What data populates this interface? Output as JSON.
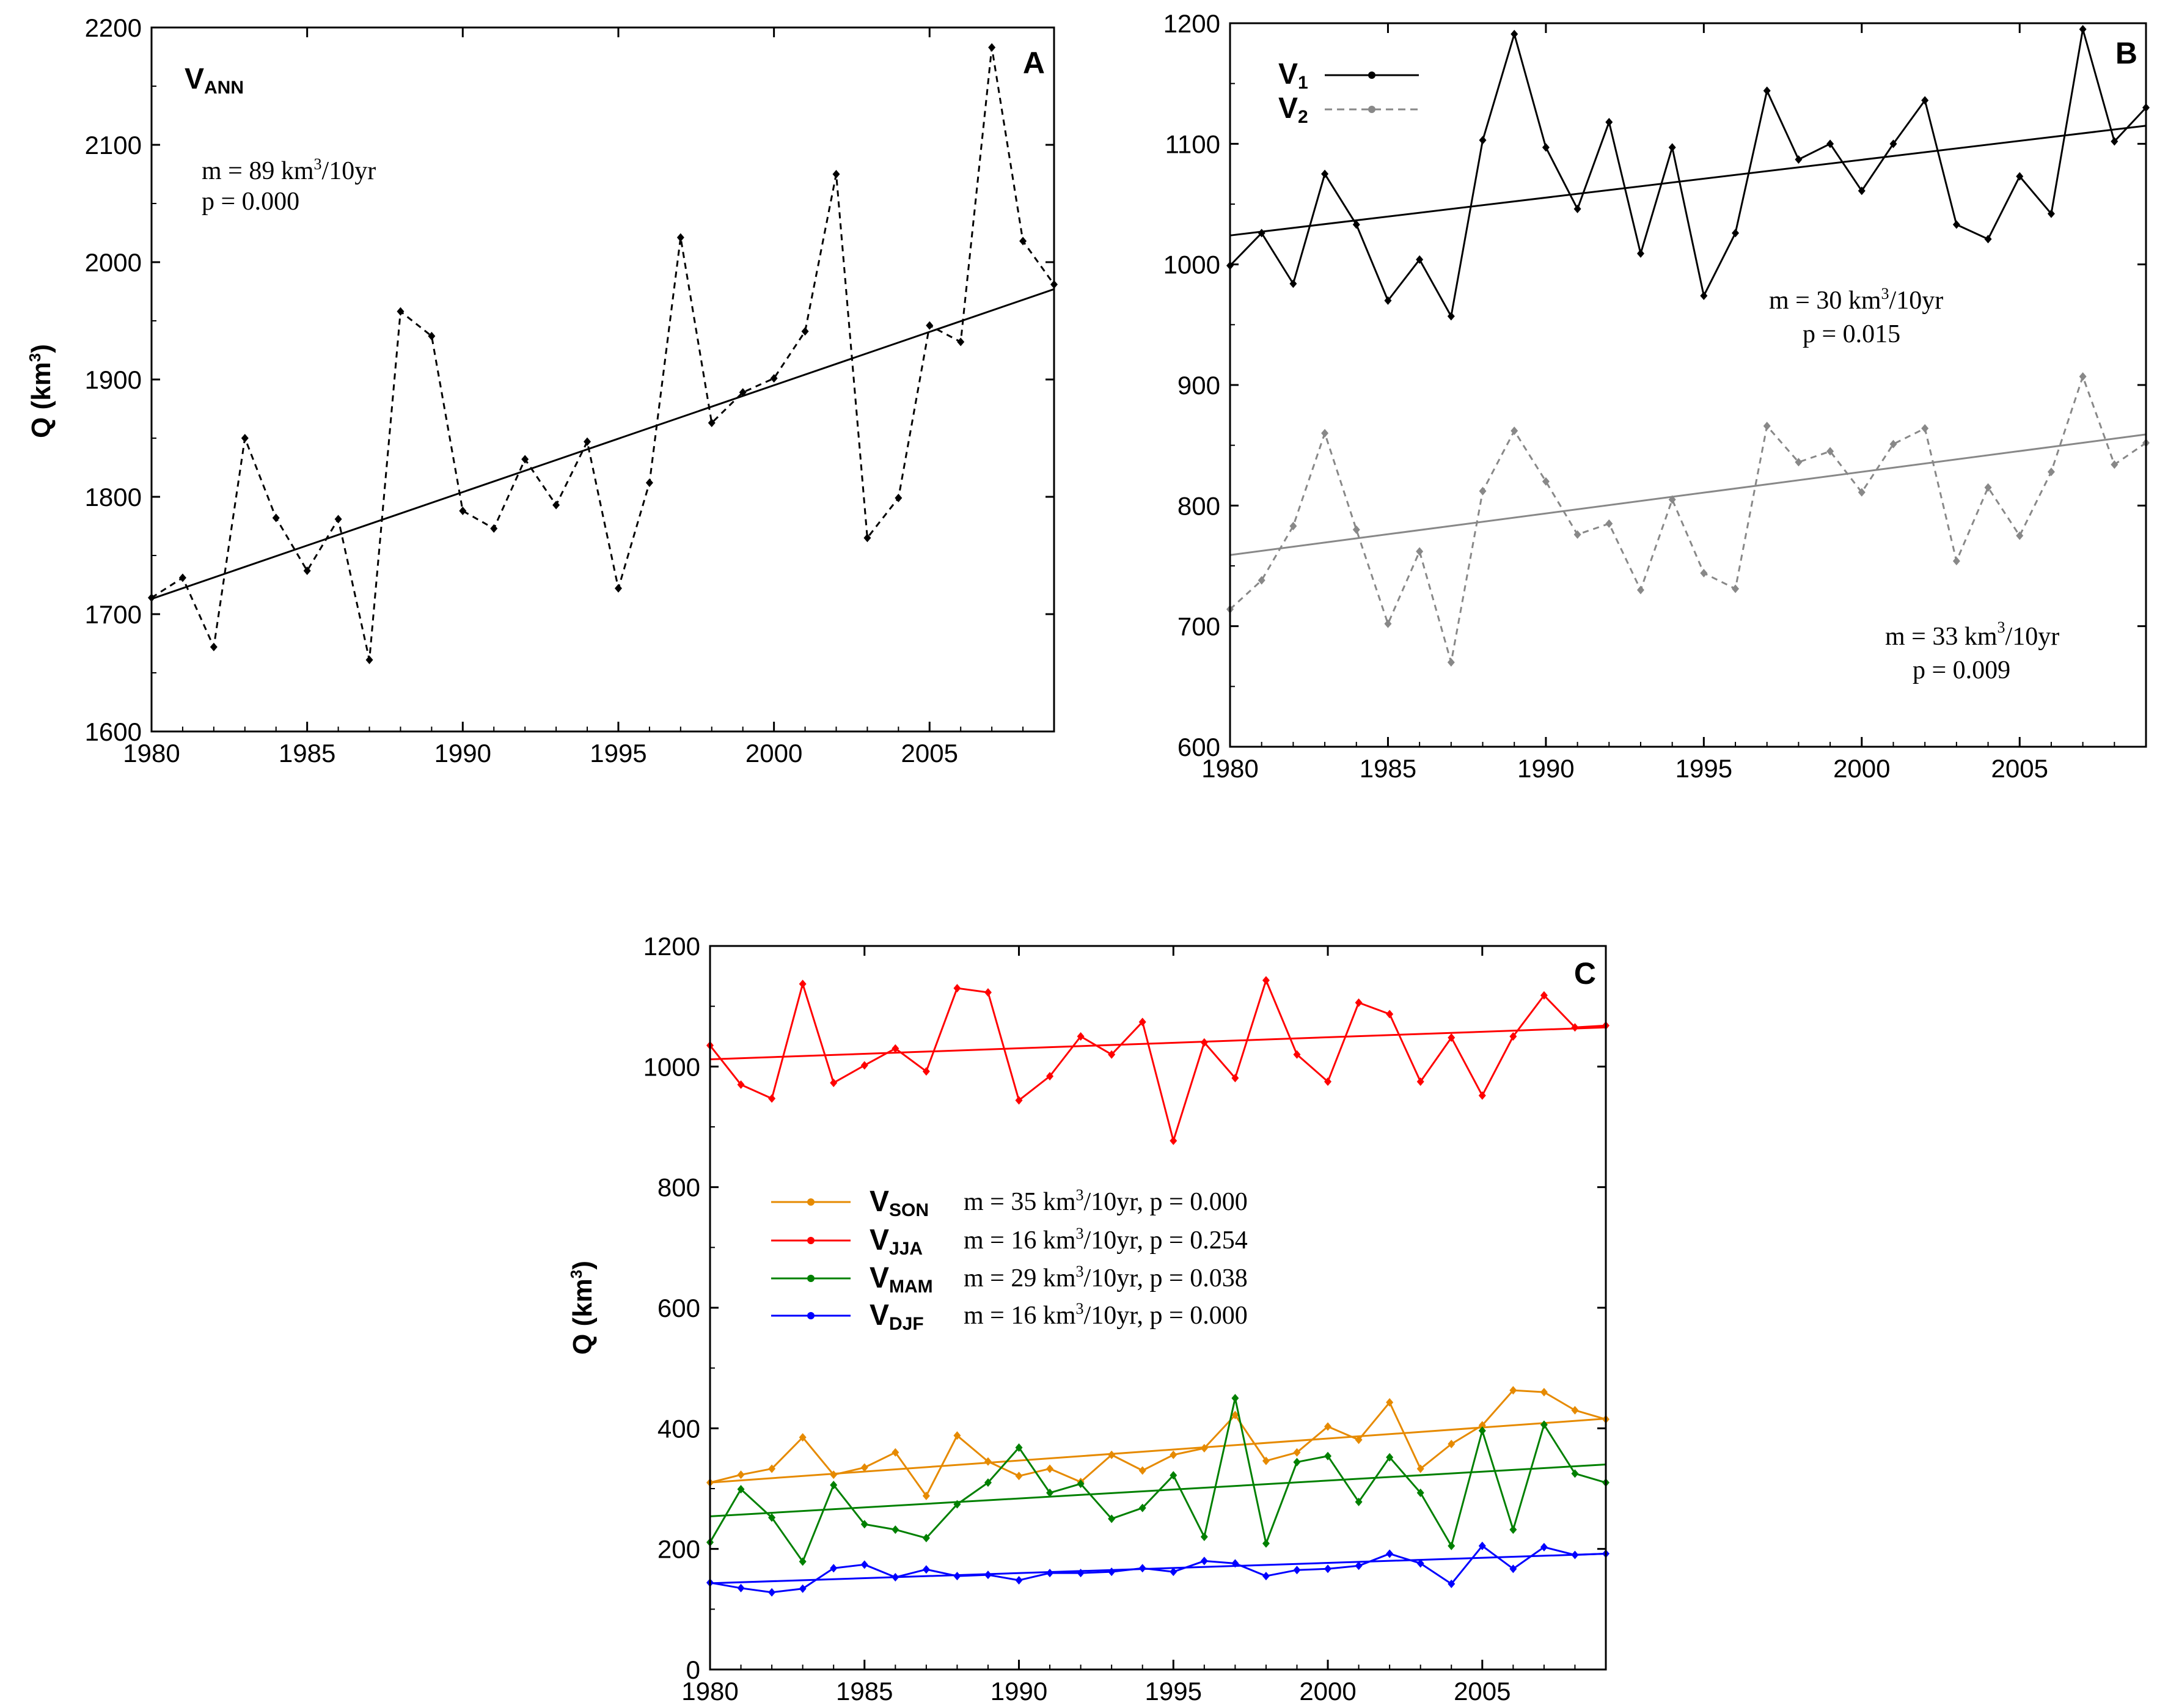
{
  "chart_data": [
    {
      "id": "A",
      "type": "line",
      "panel_label": "A",
      "series_label": "V",
      "series_label_sub": "ANN",
      "ylabel": "Q (km",
      "ylabel_sup": "3",
      "ylabel_close": ")",
      "xlim": [
        1980,
        2009
      ],
      "ylim": [
        1600,
        2200
      ],
      "xticks": [
        1980,
        1985,
        1990,
        1995,
        2000,
        2005
      ],
      "yticks": [
        1600,
        1700,
        1800,
        1900,
        2000,
        2100,
        2200
      ],
      "years": [
        1980,
        1981,
        1982,
        1983,
        1984,
        1985,
        1986,
        1987,
        1988,
        1989,
        1990,
        1991,
        1992,
        1993,
        1994,
        1995,
        1996,
        1997,
        1998,
        1999,
        2000,
        2001,
        2002,
        2003,
        2004,
        2005,
        2006,
        2007,
        2008,
        2009
      ],
      "series": [
        {
          "name": "VANN",
          "color": "#000000",
          "dash": "dashed",
          "values": [
            1714,
            1731,
            1672,
            1850,
            1782,
            1737,
            1781,
            1661,
            1958,
            1937,
            1788,
            1773,
            1832,
            1793,
            1847,
            1722,
            1812,
            2021,
            1863,
            1889,
            1901,
            1941,
            2075,
            1765,
            1799,
            1946,
            1932,
            2183,
            2018,
            1981
          ],
          "trend": [
            1713,
            1977
          ]
        }
      ],
      "annotations": {
        "m_pre": "m = 89 km",
        "m_sup": "3",
        "m_post": "/10yr",
        "p": "p = 0.000"
      }
    },
    {
      "id": "B",
      "type": "line",
      "panel_label": "B",
      "xlim": [
        1980,
        2009
      ],
      "ylim": [
        600,
        1200
      ],
      "xticks": [
        1980,
        1985,
        1990,
        1995,
        2000,
        2005
      ],
      "yticks": [
        600,
        700,
        800,
        900,
        1000,
        1100,
        1200
      ],
      "years": [
        1980,
        1981,
        1982,
        1983,
        1984,
        1985,
        1986,
        1987,
        1988,
        1989,
        1990,
        1991,
        1992,
        1993,
        1994,
        1995,
        1996,
        1997,
        1998,
        1999,
        2000,
        2001,
        2002,
        2003,
        2004,
        2005,
        2006,
        2007,
        2008,
        2009
      ],
      "legend": [
        {
          "label": "V",
          "sub": "1"
        },
        {
          "label": "V",
          "sub": "2"
        }
      ],
      "series": [
        {
          "name": "V1",
          "color": "#000000",
          "dash": "solid",
          "values": [
            999,
            1026,
            984,
            1075,
            1033,
            970,
            1004,
            957,
            1103,
            1191,
            1097,
            1046,
            1118,
            1009,
            1097,
            974,
            1026,
            1144,
            1087,
            1100,
            1061,
            1100,
            1136,
            1033,
            1021,
            1073,
            1042,
            1195,
            1102,
            1130
          ],
          "trend": [
            1024,
            1115
          ]
        },
        {
          "name": "V2",
          "color": "#888888",
          "dash": "dashed",
          "values": [
            714,
            738,
            783,
            860,
            780,
            702,
            762,
            670,
            812,
            862,
            820,
            776,
            785,
            730,
            805,
            744,
            731,
            866,
            836,
            845,
            811,
            851,
            864,
            754,
            815,
            775,
            828,
            907,
            834,
            852
          ],
          "trend": [
            759,
            859
          ]
        }
      ],
      "annotations": [
        {
          "m_pre": "m = 30 km",
          "m_sup": "3",
          "m_post": "/10yr",
          "p": "p = 0.015"
        },
        {
          "m_pre": "m = 33 km",
          "m_sup": "3",
          "m_post": "/10yr",
          "p": "p = 0.009"
        }
      ]
    },
    {
      "id": "C",
      "type": "line",
      "panel_label": "C",
      "ylabel": "Q (km",
      "ylabel_sup": "3",
      "ylabel_close": ")",
      "xlim": [
        1980,
        2009
      ],
      "ylim": [
        0,
        1200
      ],
      "xticks": [
        1980,
        1985,
        1990,
        1995,
        2000,
        2005
      ],
      "yticks": [
        0,
        200,
        400,
        600,
        800,
        1000,
        1200
      ],
      "years": [
        1980,
        1981,
        1982,
        1983,
        1984,
        1985,
        1986,
        1987,
        1988,
        1989,
        1990,
        1991,
        1992,
        1993,
        1994,
        1995,
        1996,
        1997,
        1998,
        1999,
        2000,
        2001,
        2002,
        2003,
        2004,
        2005,
        2006,
        2007,
        2008,
        2009
      ],
      "series": [
        {
          "name": "VJJA",
          "sub": "JJA",
          "color": "#ff0000",
          "stats": "m = 16 km",
          "stats_sup": "3",
          "stats_post": "/10yr, p = 0.254",
          "values": [
            1035,
            970,
            947,
            1137,
            973,
            1002,
            1030,
            992,
            1130,
            1123,
            944,
            984,
            1050,
            1020,
            1074,
            877,
            1040,
            981,
            1143,
            1020,
            975,
            1106,
            1087,
            975,
            1048,
            952,
            1050,
            1118,
            1065,
            1068
          ],
          "trend": [
            1012,
            1065
          ]
        },
        {
          "name": "VSON",
          "sub": "SON",
          "color": "#e68a00",
          "stats": "m = 35 km",
          "stats_sup": "3",
          "stats_post": "/10yr, p = 0.000",
          "values": [
            310,
            323,
            333,
            385,
            323,
            335,
            360,
            288,
            388,
            345,
            321,
            333,
            311,
            356,
            330,
            356,
            367,
            422,
            346,
            360,
            403,
            381,
            443,
            333,
            374,
            405,
            463,
            460,
            430,
            415
          ],
          "trend": [
            310,
            416
          ]
        },
        {
          "name": "VMAM",
          "sub": "MAM",
          "color": "#008000",
          "stats": "m = 29 km",
          "stats_sup": "3",
          "stats_post": "/10yr, p = 0.038",
          "values": [
            211,
            299,
            252,
            179,
            306,
            241,
            232,
            218,
            274,
            310,
            368,
            293,
            308,
            250,
            268,
            322,
            220,
            450,
            209,
            344,
            354,
            278,
            352,
            293,
            205,
            396,
            232,
            406,
            325,
            310
          ],
          "trend": [
            254,
            340
          ]
        },
        {
          "name": "VDJF",
          "sub": "DJF",
          "color": "#0000ff",
          "stats": "m = 16 km",
          "stats_sup": "3",
          "stats_post": "/10yr, p = 0.000",
          "values": [
            144,
            135,
            128,
            134,
            168,
            174,
            153,
            166,
            155,
            157,
            148,
            160,
            160,
            162,
            168,
            162,
            180,
            176,
            155,
            165,
            167,
            172,
            192,
            176,
            142,
            205,
            167,
            203,
            190,
            192
          ],
          "trend": [
            143,
            192
          ]
        }
      ],
      "legend_order": [
        "VSON",
        "VJJA",
        "VMAM",
        "VDJF"
      ]
    }
  ]
}
